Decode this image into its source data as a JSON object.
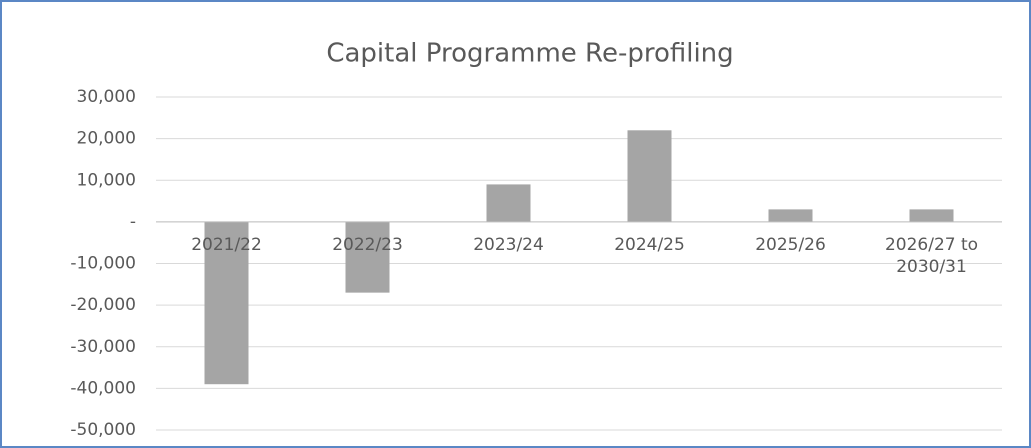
{
  "chart_data": {
    "type": "bar",
    "title": "Capital Programme Re-profiling",
    "categories": [
      "2021/22",
      "2022/23",
      "2023/24",
      "2024/25",
      "2025/26",
      "2026/27 to 2030/31"
    ],
    "values": [
      -39000,
      -17000,
      9000,
      22000,
      3000,
      3000
    ],
    "color": "#a5a5a5",
    "ylim": [
      -50000,
      30000
    ],
    "yticks": [
      {
        "value": -50000,
        "label": "-50,000"
      },
      {
        "value": -40000,
        "label": "-40,000"
      },
      {
        "value": -30000,
        "label": "-30,000"
      },
      {
        "value": -20000,
        "label": "-20,000"
      },
      {
        "value": -10000,
        "label": "-10,000"
      },
      {
        "value": 0,
        "label": "-"
      },
      {
        "value": 10000,
        "label": "10,000"
      },
      {
        "value": 20000,
        "label": "20,000"
      },
      {
        "value": 30000,
        "label": "30,000"
      }
    ],
    "grid": true
  }
}
